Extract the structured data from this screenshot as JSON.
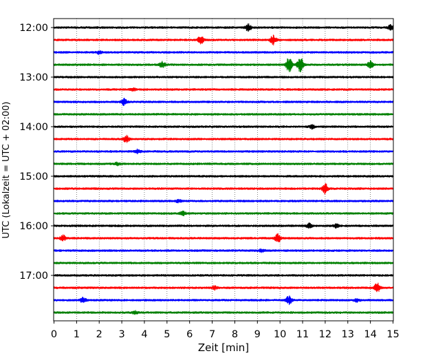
{
  "chart_data": {
    "type": "line",
    "title": "",
    "xlabel": "Zeit  [min]",
    "ylabel": "UTC (Lokalzeit = UTC + 02:00)",
    "xlim": [
      0,
      15
    ],
    "x_ticks": [
      "0",
      "1",
      "2",
      "3",
      "4",
      "5",
      "6",
      "7",
      "8",
      "9",
      "10",
      "11",
      "12",
      "13",
      "14",
      "15"
    ],
    "y_tick_labels": [
      "12:00",
      "13:00",
      "14:00",
      "15:00",
      "16:00",
      "17:00"
    ],
    "grid": "vertical dotted at each minute",
    "trace_colors": [
      "#000000",
      "#ff0000",
      "#0000ff",
      "#008000"
    ],
    "traces": [
      {
        "start": "12:00",
        "color": "#000000",
        "events": [
          {
            "t": 8.6,
            "amp": 1.0
          },
          {
            "t": 14.9,
            "amp": 0.8
          }
        ]
      },
      {
        "start": "12:15",
        "color": "#ff0000",
        "events": [
          {
            "t": 6.5,
            "amp": 1.2
          },
          {
            "t": 9.7,
            "amp": 1.3
          }
        ]
      },
      {
        "start": "12:30",
        "color": "#0000ff",
        "events": [
          {
            "t": 2.0,
            "amp": 0.4
          }
        ]
      },
      {
        "start": "12:45",
        "color": "#008000",
        "events": [
          {
            "t": 4.8,
            "amp": 0.9
          },
          {
            "t": 10.4,
            "amp": 2.2
          },
          {
            "t": 10.9,
            "amp": 2.4
          },
          {
            "t": 14.0,
            "amp": 1.0
          }
        ]
      },
      {
        "start": "13:00",
        "color": "#000000",
        "events": []
      },
      {
        "start": "13:15",
        "color": "#ff0000",
        "events": [
          {
            "t": 3.5,
            "amp": 0.4
          }
        ]
      },
      {
        "start": "13:30",
        "color": "#0000ff",
        "events": [
          {
            "t": 3.1,
            "amp": 0.9
          }
        ]
      },
      {
        "start": "13:45",
        "color": "#008000",
        "events": []
      },
      {
        "start": "14:00",
        "color": "#000000",
        "events": [
          {
            "t": 11.4,
            "amp": 0.5
          }
        ]
      },
      {
        "start": "14:15",
        "color": "#ff0000",
        "events": [
          {
            "t": 3.2,
            "amp": 1.0
          }
        ]
      },
      {
        "start": "14:30",
        "color": "#0000ff",
        "events": [
          {
            "t": 3.7,
            "amp": 0.5
          }
        ]
      },
      {
        "start": "14:45",
        "color": "#008000",
        "events": [
          {
            "t": 2.8,
            "amp": 0.4
          }
        ]
      },
      {
        "start": "15:00",
        "color": "#000000",
        "events": []
      },
      {
        "start": "15:15",
        "color": "#ff0000",
        "events": [
          {
            "t": 12.0,
            "amp": 1.4
          }
        ]
      },
      {
        "start": "15:30",
        "color": "#0000ff",
        "events": [
          {
            "t": 5.5,
            "amp": 0.4
          }
        ]
      },
      {
        "start": "15:45",
        "color": "#008000",
        "events": [
          {
            "t": 5.7,
            "amp": 0.6
          }
        ]
      },
      {
        "start": "16:00",
        "color": "#000000",
        "events": [
          {
            "t": 11.3,
            "amp": 0.6
          },
          {
            "t": 12.5,
            "amp": 0.5
          }
        ]
      },
      {
        "start": "16:15",
        "color": "#ff0000",
        "events": [
          {
            "t": 0.4,
            "amp": 0.8
          },
          {
            "t": 9.9,
            "amp": 1.2
          }
        ]
      },
      {
        "start": "16:30",
        "color": "#0000ff",
        "events": [
          {
            "t": 9.2,
            "amp": 0.4
          }
        ]
      },
      {
        "start": "16:45",
        "color": "#008000",
        "events": []
      },
      {
        "start": "17:00",
        "color": "#000000",
        "events": []
      },
      {
        "start": "17:15",
        "color": "#ff0000",
        "events": [
          {
            "t": 7.1,
            "amp": 0.5
          },
          {
            "t": 14.3,
            "amp": 1.4
          }
        ]
      },
      {
        "start": "17:30",
        "color": "#0000ff",
        "events": [
          {
            "t": 1.3,
            "amp": 0.8
          },
          {
            "t": 10.4,
            "amp": 1.2
          },
          {
            "t": 13.4,
            "amp": 0.5
          }
        ]
      },
      {
        "start": "17:45",
        "color": "#008000",
        "events": [
          {
            "t": 3.6,
            "amp": 0.4
          }
        ]
      }
    ]
  }
}
